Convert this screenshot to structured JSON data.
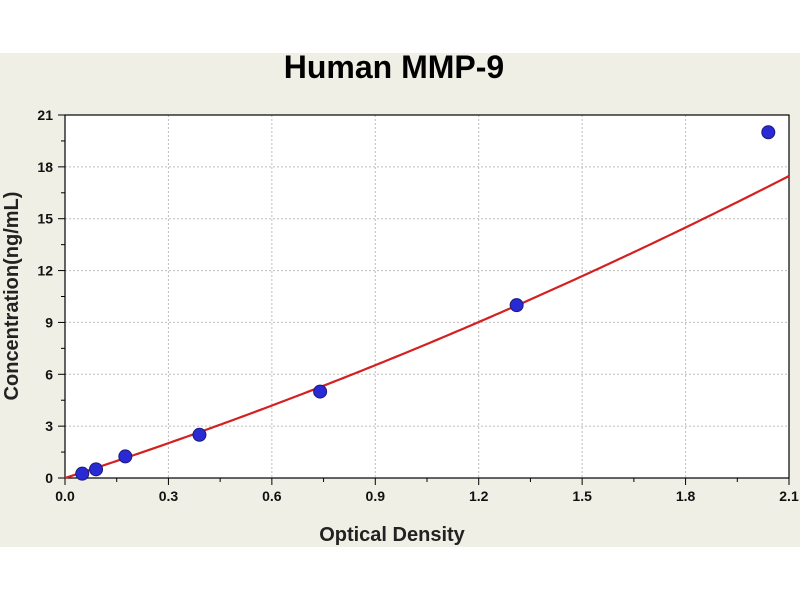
{
  "chart_data": {
    "type": "scatter",
    "title": "Human MMP-9",
    "xlabel": "Optical Density",
    "ylabel": "Concentration(ng/mL)",
    "xlim": [
      0,
      2.1
    ],
    "ylim": [
      0,
      21
    ],
    "xticks": [
      "0.0",
      "0.3",
      "0.6",
      "0.9",
      "1.2",
      "1.5",
      "1.8",
      "2.1"
    ],
    "yticks": [
      "0",
      "3",
      "6",
      "9",
      "12",
      "15",
      "18",
      "21"
    ],
    "grid": true,
    "legend": "none",
    "points": [
      {
        "x": 0.05,
        "y": 0.25
      },
      {
        "x": 0.09,
        "y": 0.5
      },
      {
        "x": 0.175,
        "y": 1.25
      },
      {
        "x": 0.39,
        "y": 2.5
      },
      {
        "x": 0.74,
        "y": 5.0
      },
      {
        "x": 1.31,
        "y": 10.0
      },
      {
        "x": 2.04,
        "y": 20.0
      }
    ],
    "fit_curve": {
      "type": "polynomial",
      "coefficients": [
        0.0,
        6.45,
        0.89
      ],
      "color": "#d42020"
    },
    "point_color": "#2a2ad4",
    "point_edge_color": "#1a1a7a"
  }
}
